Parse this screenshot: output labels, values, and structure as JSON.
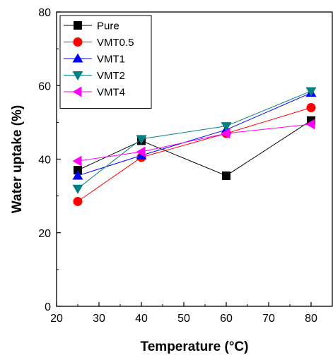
{
  "chart_data": {
    "type": "line",
    "xlabel": "Temperature (°C)",
    "ylabel": "Water uptake (%)",
    "xlim": [
      20,
      85
    ],
    "ylim": [
      0,
      80
    ],
    "x_ticks": [
      20,
      30,
      40,
      50,
      60,
      70,
      80
    ],
    "y_ticks": [
      0,
      20,
      40,
      60,
      80
    ],
    "grid": false,
    "legend_position": "top-left",
    "x": [
      25,
      40,
      60,
      80
    ],
    "series": [
      {
        "name": "Pure",
        "values": [
          37,
          45,
          35.5,
          50.5
        ],
        "color": "#000000",
        "marker": "square"
      },
      {
        "name": "VMT0.5",
        "values": [
          28.5,
          40.5,
          47,
          54
        ],
        "color": "#ff0000",
        "marker": "circle"
      },
      {
        "name": "VMT1",
        "values": [
          35.5,
          41,
          48,
          58
        ],
        "color": "#0000ff",
        "marker": "triangle-up"
      },
      {
        "name": "VMT2",
        "values": [
          32,
          45.5,
          49,
          58.5
        ],
        "color": "#008080",
        "marker": "triangle-down"
      },
      {
        "name": "VMT4",
        "values": [
          39.5,
          42,
          47,
          49.5
        ],
        "color": "#ff00ff",
        "marker": "triangle-left"
      }
    ]
  }
}
